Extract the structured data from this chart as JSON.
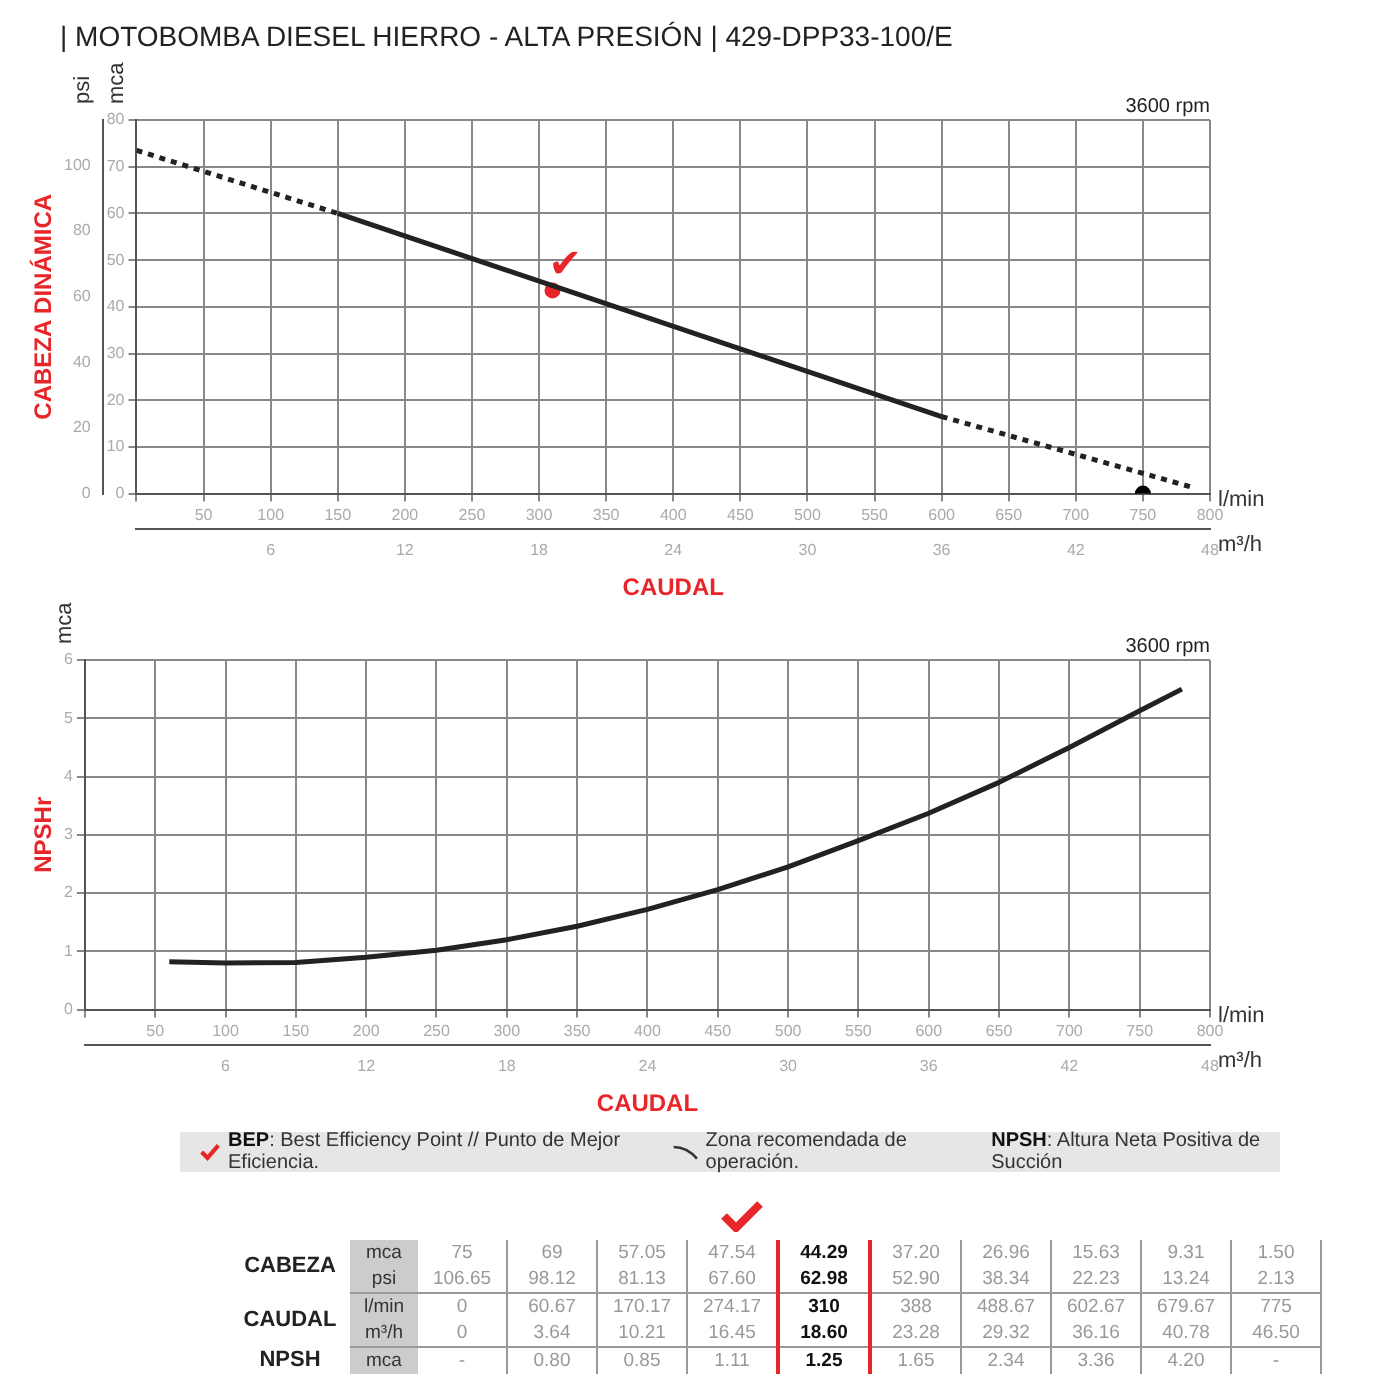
{
  "chart_data": [
    {
      "type": "line",
      "title": "| MOTOBOMBA DIESEL HIERRO - ALTA PRESIÓN | 429-DPP33-100/E",
      "xlabel": "l/min",
      "x2label": "m³/h",
      "ylabel": "mca",
      "y2label": "psi",
      "xlim": [
        0,
        800
      ],
      "xticks": [
        {
          "value": 0,
          "label": null
        },
        50,
        100,
        150,
        200,
        250,
        300,
        350,
        400,
        450,
        500,
        550,
        600,
        650,
        700,
        750,
        800
      ],
      "x2lim": [
        0,
        48
      ],
      "x2ticks": [
        6,
        12,
        18,
        24,
        30,
        36,
        42,
        48
      ],
      "ylim": [
        0,
        80
      ],
      "yticks": [
        0,
        10,
        20,
        30,
        40,
        50,
        60,
        70,
        80
      ],
      "y2lim": [
        0,
        113.8
      ],
      "y2ticks": [
        0,
        20,
        40,
        60,
        80,
        100
      ],
      "grid": true,
      "legend": false,
      "series": [
        {
          "color": "#222222",
          "line_style": "dashed",
          "marker": "none",
          "x": [
            0,
            150
          ],
          "values": [
            73.5,
            60
          ]
        },
        {
          "color": "#222222",
          "line_style": "solid",
          "marker": "none",
          "x": [
            150,
            600
          ],
          "values": [
            60,
            16.5
          ]
        },
        {
          "color": "#222222",
          "line_style": "dashed",
          "marker": "none",
          "x": [
            600,
            785
          ],
          "values": [
            16.5,
            1.5
          ]
        },
        {
          "type": "scatter",
          "color": "#000000",
          "marker": "circle",
          "x": [
            750
          ],
          "values": [
            0
          ]
        },
        {
          "type": "scatter",
          "color": "#e8262a",
          "marker": "circle",
          "x": [
            310
          ],
          "values": [
            43.5
          ]
        }
      ],
      "annotations": [
        "CABEZA DINÁMICA",
        "CAUDAL",
        "3600 rpm",
        {
          "text": "✔",
          "x": 310,
          "y": 43.5
        }
      ]
    },
    {
      "type": "line",
      "xlabel": "l/min",
      "x2label": "m³/h",
      "ylabel": "mca",
      "xlim": [
        0,
        800
      ],
      "xticks": [
        {
          "value": 0,
          "label": null
        },
        50,
        100,
        150,
        200,
        250,
        300,
        350,
        400,
        450,
        500,
        550,
        600,
        650,
        700,
        750,
        800
      ],
      "x2lim": [
        0,
        48
      ],
      "x2ticks": [
        6,
        12,
        18,
        24,
        30,
        36,
        42,
        48
      ],
      "ylim": [
        0,
        6
      ],
      "yticks": [
        0,
        1,
        2,
        3,
        4,
        5,
        6
      ],
      "grid": true,
      "legend": false,
      "series": [
        {
          "color": "#222222",
          "line_style": "solid",
          "marker": "none",
          "x": [
            60,
            100,
            150,
            200,
            250,
            300,
            350,
            400,
            450,
            500,
            550,
            600,
            650,
            700,
            750,
            780
          ],
          "values": [
            0.82,
            0.8,
            0.81,
            0.9,
            1.02,
            1.2,
            1.43,
            1.72,
            2.06,
            2.45,
            2.9,
            3.37,
            3.9,
            4.5,
            5.13,
            5.5
          ]
        }
      ],
      "annotations": [
        "NPSHr",
        "CAUDAL",
        "3600 rpm"
      ]
    },
    {
      "type": "other",
      "annotations": [
        "BEP: Best Efficiency Point // Punto de Mejor Eficiencia.",
        "Zona recomendada de operación.",
        "NPSH: Altura Neta Positiva de Succión",
        "CABEZA",
        "CAUDAL",
        "NPSH"
      ],
      "y_categories": [
        "mca",
        "psi",
        "l/min",
        "m³/h",
        "mca"
      ],
      "cell_labels": [
        [
          "75",
          "69",
          "57.05",
          "47.54",
          "44.29",
          "37.20",
          "26.96",
          "15.63",
          "9.31",
          "1.50"
        ],
        [
          "106.65",
          "98.12",
          "81.13",
          "67.60",
          "62.98",
          "52.90",
          "38.34",
          "22.23",
          "13.24",
          "2.13"
        ],
        [
          "0",
          "60.67",
          "170.17",
          "274.17",
          "310",
          "388",
          "488.67",
          "602.67",
          "679.67",
          "775"
        ],
        [
          "0",
          "3.64",
          "10.21",
          "16.45",
          "18.60",
          "23.28",
          "29.32",
          "36.16",
          "40.78",
          "46.50"
        ],
        [
          "-",
          "0.80",
          "0.85",
          "1.11",
          "1.25",
          "1.65",
          "2.34",
          "3.36",
          "4.20",
          "-"
        ]
      ]
    }
  ]
}
